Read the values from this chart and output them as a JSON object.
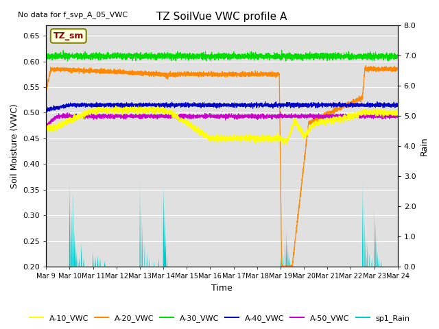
{
  "title": "TZ SoilVue VWC profile A",
  "no_data_text": "No data for f_svp_A_05_VWC",
  "watermark_text": "TZ_sm",
  "xlabel": "Time",
  "ylabel": "Soil Moisture (VWC)",
  "ylabel_right": "Rain",
  "ylim": [
    0.2,
    0.67
  ],
  "ylim_right": [
    0.0,
    8.0
  ],
  "yticks": [
    0.2,
    0.25,
    0.3,
    0.35,
    0.4,
    0.45,
    0.5,
    0.55,
    0.6,
    0.65
  ],
  "yticks_right": [
    0.0,
    1.0,
    2.0,
    3.0,
    4.0,
    5.0,
    6.0,
    7.0,
    8.0
  ],
  "xtick_labels": [
    "Mar 9",
    "Mar 10",
    "Mar 11",
    "Mar 12",
    "Mar 13",
    "Mar 14",
    "Mar 15",
    "Mar 16",
    "Mar 17",
    "Mar 18",
    "Mar 19",
    "Mar 20",
    "Mar 21",
    "Mar 22",
    "Mar 23",
    "Mar 24"
  ],
  "colors": {
    "A10": "#ffff00",
    "A20": "#ff8800",
    "A30": "#00dd00",
    "A40": "#0000cc",
    "A50": "#cc00cc",
    "Rain": "#00cccc",
    "bg": "#e0e0e0"
  },
  "legend_labels": [
    "A-10_VWC",
    "A-20_VWC",
    "A-30_VWC",
    "A-40_VWC",
    "A-50_VWC",
    "sp1_Rain"
  ],
  "legend_colors": [
    "#ffff00",
    "#ff8800",
    "#00dd00",
    "#0000cc",
    "#cc00cc",
    "#00cccc"
  ]
}
